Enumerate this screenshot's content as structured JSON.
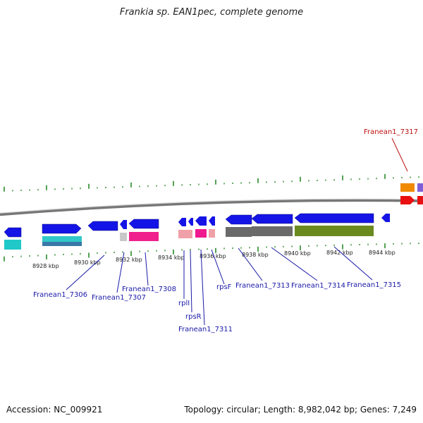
{
  "title": "Frankia sp. EAN1pec, complete genome",
  "accession": "Accession: NC_009921",
  "summary": "Topology: circular; Length: 8,982,042 bp; Genes: 7,249",
  "colors": {
    "forward_gene": "#1010e0",
    "reverse_gene": "#1010e0",
    "label_blue": "#1a1aa8",
    "label_red": "#c01010",
    "tick_green": "#2a8a2a",
    "backbone": "#8a8a8a"
  },
  "scale": {
    "unit": "kbp",
    "ticks": [
      {
        "kbp": 8928,
        "label": "8928 kbp"
      },
      {
        "kbp": 8930,
        "label": "8930 kbp"
      },
      {
        "kbp": 8932,
        "label": "8932 kbp"
      },
      {
        "kbp": 8934,
        "label": "8934 kbp"
      },
      {
        "kbp": 8936,
        "label": "8936 kbp"
      },
      {
        "kbp": 8938,
        "label": "8938 kbp"
      },
      {
        "kbp": 8940,
        "label": "8940 kbp"
      },
      {
        "kbp": 8942,
        "label": "8942 kbp"
      },
      {
        "kbp": 8944,
        "label": "8944 kbp"
      }
    ]
  },
  "gene_labels": [
    {
      "id": "l7306",
      "text": "Franean1_7306",
      "color": "blue"
    },
    {
      "id": "l7307",
      "text": "Franean1_7307",
      "color": "blue"
    },
    {
      "id": "l7308",
      "text": "Franean1_7308",
      "color": "blue"
    },
    {
      "id": "lrplI",
      "text": "rplI",
      "color": "blue"
    },
    {
      "id": "lrpsR",
      "text": "rpsR",
      "color": "blue"
    },
    {
      "id": "l7311",
      "text": "Franean1_7311",
      "color": "blue"
    },
    {
      "id": "lrpsF",
      "text": "rpsF",
      "color": "blue"
    },
    {
      "id": "l7313",
      "text": "Franean1_7313",
      "color": "blue"
    },
    {
      "id": "l7314",
      "text": "Franean1_7314",
      "color": "blue"
    },
    {
      "id": "l7315",
      "text": "Franean1_7315",
      "color": "blue"
    },
    {
      "id": "l7317",
      "text": "Franean1_7317",
      "color": "red"
    }
  ]
}
